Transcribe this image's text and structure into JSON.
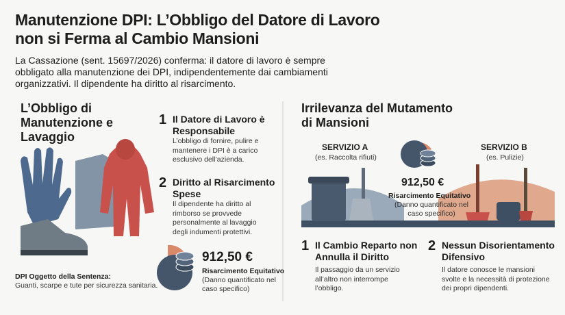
{
  "header": {
    "title": "Manutenzione DPI: L’Obbligo del Datore di Lavoro non si Ferma al Cambio Mansioni",
    "intro": "La Cassazione (sent. 15697/2026) conferma: il datore di lavoro è sempre obbligato alla manutenzione dei DPI, indipendentemente dai cambiamenti organizzativi. Il dipendente ha diritto al risarcimento."
  },
  "left": {
    "heading": "L’Obbligo di Manutenzione e Lavaggio",
    "points": [
      {
        "number": "1",
        "title": "Il Datore di Lavoro è Responsabile",
        "text": "L’obbligo di fornire, pulire e mantenere i DPI è a carico esclusivo dell’azienda."
      },
      {
        "number": "2",
        "title": "Diritto al Risarcimento Spese",
        "text": "Il dipendente ha diritto al rimborso se provvede personalmente al lavaggio degli indumenti protettivi."
      }
    ],
    "caption_title": "DPI Oggetto della Sentenza:",
    "caption_text": "Guanti, scarpe e tute per sicurezza sanitaria.",
    "amount": "912,50 €",
    "amount_label": "Risarcimento Equitativo",
    "amount_note": "(Danno quantificato nel caso specifico)"
  },
  "right": {
    "heading": "Irrilevanza del Mutamento di Mansioni",
    "service_a": {
      "label": "SERVIZIO A",
      "sub": "(es. Raccolta rifiuti)"
    },
    "service_b": {
      "label": "SERVIZIO B",
      "sub": "(es. Pulizie)"
    },
    "amount": "912,50 €",
    "amount_label": "Risarcimento Equitativo",
    "amount_note": "(Danno quantificato nel caso specifico)",
    "points": [
      {
        "number": "1",
        "title": "Il Cambio Reparto non Annulla il Diritto",
        "text": "Il passaggio da un servizio all’altro non interrompe l’obbligo."
      },
      {
        "number": "2",
        "title": "Nessun Disorientamento Difensivo",
        "text": "Il datore conosce le mansioni svolte e la necessità di protezione dei propri dipendenti."
      }
    ]
  }
}
